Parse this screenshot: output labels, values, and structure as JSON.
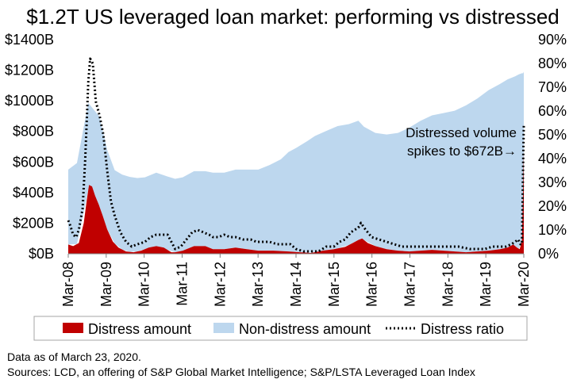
{
  "chart_data": {
    "type": "area",
    "title": "$1.2T US leveraged loan market: performing vs distressed",
    "x_ticks": [
      "Mar-08",
      "Mar-09",
      "Mar-10",
      "Mar-11",
      "Mar-12",
      "Mar-13",
      "Mar-14",
      "Mar-15",
      "Mar-16",
      "Mar-17",
      "Mar-18",
      "Mar-19",
      "Mar-20"
    ],
    "y_left": {
      "ticks": [
        "$0B",
        "$200B",
        "$400B",
        "$600B",
        "$800B",
        "$1000B",
        "$1200B",
        "$1400B"
      ],
      "range": [
        0,
        1400
      ]
    },
    "y_right": {
      "ticks": [
        "0%",
        "10%",
        "20%",
        "30%",
        "40%",
        "50%",
        "60%",
        "70%",
        "80%",
        "90%"
      ],
      "range": [
        0,
        90
      ]
    },
    "x_range": [
      2008.17,
      2020.23
    ],
    "series": [
      {
        "name": "Distress amount",
        "color": "#c00000",
        "x": [
          2008.17,
          2008.3,
          2008.45,
          2008.58,
          2008.66,
          2008.72,
          2008.8,
          2008.88,
          2008.98,
          2009.08,
          2009.2,
          2009.35,
          2009.5,
          2009.7,
          2009.9,
          2010.1,
          2010.3,
          2010.5,
          2010.7,
          2010.9,
          2011.0,
          2011.2,
          2011.5,
          2011.8,
          2012.0,
          2012.3,
          2012.6,
          2012.9,
          2013.2,
          2013.6,
          2014.0,
          2014.3,
          2014.6,
          2014.9,
          2015.2,
          2015.5,
          2015.7,
          2015.85,
          2015.95,
          2016.1,
          2016.3,
          2016.6,
          2016.9,
          2017.2,
          2017.5,
          2017.8,
          2018.1,
          2018.4,
          2018.7,
          2019.0,
          2019.3,
          2019.6,
          2019.8,
          2019.95,
          2020.05,
          2020.12,
          2020.18,
          2020.21,
          2020.23
        ],
        "values": [
          60,
          50,
          70,
          200,
          350,
          450,
          440,
          380,
          320,
          250,
          160,
          80,
          40,
          15,
          10,
          20,
          40,
          50,
          40,
          10,
          10,
          20,
          50,
          50,
          30,
          30,
          40,
          30,
          20,
          20,
          15,
          10,
          5,
          20,
          30,
          45,
          70,
          90,
          100,
          70,
          50,
          30,
          20,
          15,
          20,
          25,
          20,
          15,
          10,
          15,
          20,
          30,
          40,
          60,
          40,
          30,
          80,
          400,
          672
        ]
      },
      {
        "name": "Non-distress amount",
        "color": "#bdd7ee",
        "x": [
          2008.17,
          2008.4,
          2008.7,
          2009.0,
          2009.2,
          2009.4,
          2009.6,
          2009.8,
          2010.0,
          2010.2,
          2010.5,
          2010.8,
          2011.0,
          2011.2,
          2011.5,
          2011.8,
          2012.0,
          2012.3,
          2012.6,
          2012.9,
          2013.2,
          2013.5,
          2013.8,
          2014.0,
          2014.2,
          2014.5,
          2014.7,
          2015.0,
          2015.3,
          2015.6,
          2015.85,
          2016.0,
          2016.3,
          2016.6,
          2016.9,
          2017.2,
          2017.5,
          2017.8,
          2018.1,
          2018.4,
          2018.7,
          2019.0,
          2019.3,
          2019.6,
          2019.8,
          2020.0,
          2020.1,
          2020.18,
          2020.21,
          2020.23
        ],
        "values": [
          490,
          530,
          570,
          590,
          520,
          480,
          490,
          490,
          480,
          470,
          480,
          480,
          480,
          480,
          490,
          490,
          500,
          500,
          510,
          520,
          530,
          560,
          600,
          650,
          680,
          730,
          760,
          780,
          800,
          790,
          780,
          740,
          740,
          750,
          770,
          810,
          850,
          880,
          900,
          920,
          960,
          1000,
          1050,
          1080,
          1100,
          1110,
          1140,
          1100,
          780,
          518
        ]
      },
      {
        "name": "Distress ratio",
        "color": "#000000",
        "x": [
          2008.17,
          2008.22,
          2008.3,
          2008.38,
          2008.45,
          2008.55,
          2008.62,
          2008.7,
          2008.75,
          2008.82,
          2008.9,
          2009.0,
          2009.1,
          2009.2,
          2009.3,
          2009.4,
          2009.55,
          2009.7,
          2009.85,
          2010.0,
          2010.2,
          2010.35,
          2010.5,
          2010.65,
          2010.8,
          2010.9,
          2011.0,
          2011.15,
          2011.3,
          2011.45,
          2011.6,
          2011.75,
          2011.9,
          2012.0,
          2012.15,
          2012.3,
          2012.45,
          2012.6,
          2012.8,
          2013.0,
          2013.15,
          2013.3,
          2013.5,
          2013.7,
          2013.9,
          2014.05,
          2014.2,
          2014.4,
          2014.6,
          2014.8,
          2015.0,
          2015.2,
          2015.35,
          2015.5,
          2015.65,
          2015.75,
          2015.85,
          2015.92,
          2016.0,
          2016.1,
          2016.2,
          2016.4,
          2016.6,
          2016.8,
          2017.0,
          2017.3,
          2017.6,
          2017.9,
          2018.2,
          2018.5,
          2018.8,
          2019.0,
          2019.2,
          2019.4,
          2019.6,
          2019.75,
          2019.9,
          2020.0,
          2020.08,
          2020.14,
          2020.18,
          2020.21,
          2020.23
        ],
        "values": [
          14,
          12,
          8,
          7,
          10,
          19,
          40,
          72,
          82,
          80,
          64,
          58,
          50,
          35,
          22,
          16,
          9,
          5,
          3,
          4,
          5,
          7,
          8,
          8,
          8,
          5,
          2,
          3,
          6,
          9,
          10,
          9,
          8,
          7,
          7,
          8,
          7,
          7,
          6,
          6,
          5,
          5,
          5,
          4,
          4,
          4,
          2,
          1,
          1,
          1,
          3,
          3,
          5,
          6,
          9,
          10,
          11,
          13,
          11,
          9,
          7,
          6,
          5,
          4,
          3,
          3,
          3,
          3,
          3,
          3,
          2,
          2,
          2,
          3,
          3,
          3,
          4,
          5,
          6,
          4,
          4,
          35,
          54
        ]
      }
    ],
    "annotation": [
      "Distressed volume",
      "spikes to $672B→"
    ],
    "legend_position": "bottom",
    "grid": false
  },
  "footnotes": [
    "Data as of March 23, 2020.",
    "Sources: LCD, an offering of S&P Global Market Intelligence; S&P/LSTA Leveraged Loan Index"
  ]
}
